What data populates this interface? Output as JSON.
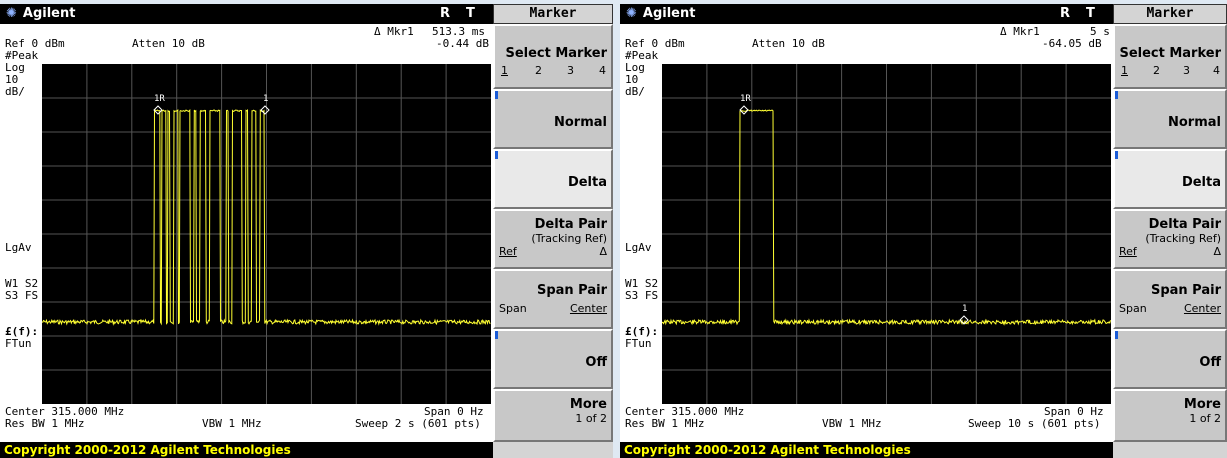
{
  "panels": [
    {
      "brand": "Agilent",
      "r_label": "R",
      "t_label": "T",
      "menu_title": "Marker",
      "mkr_label": "Δ Mkr1",
      "mkr_time": "513.3 ms",
      "mkr_amp": "-0.44 dB",
      "ref": "Ref 0 dBm",
      "atten": "Atten 10 dB",
      "peak": "#Peak",
      "log": "Log",
      "scale_val": "10",
      "scale_unit": "dB/",
      "lgav": "LgAv",
      "w1s2": "W1  S2",
      "s3fs": "S3  FS",
      "ff": "£(f):",
      "ftun": "FTun",
      "center": "Center 315.000 MHz",
      "span": "Span 0 Hz",
      "resbw": "Res BW 1 MHz",
      "vbw": "VBW 1 MHz",
      "sweep": "Sweep 2 s (601 pts)",
      "mk1r": "1R",
      "mk1": "1",
      "copyright": "Copyright 2000-2012 Agilent Technologies",
      "softkeys": {
        "select_marker": "Select Marker",
        "sel_nums": [
          "1",
          "2",
          "3",
          "4"
        ],
        "normal": "Normal",
        "delta": "Delta",
        "delta_pair": "Delta Pair",
        "tracking_ref": "(Tracking Ref)",
        "ref_label": "Ref",
        "delta_sym": "Δ",
        "span_pair": "Span Pair",
        "span_label": "Span",
        "center_label": "Center",
        "off": "Off",
        "more": "More",
        "one_of_two": "1 of 2"
      }
    },
    {
      "brand": "Agilent",
      "r_label": "R",
      "t_label": "T",
      "menu_title": "Marker",
      "mkr_label": "Δ Mkr1",
      "mkr_time": "5 s",
      "mkr_amp": "-64.05 dB",
      "ref": "Ref 0 dBm",
      "atten": "Atten 10 dB",
      "peak": "#Peak",
      "log": "Log",
      "scale_val": "10",
      "scale_unit": "dB/",
      "lgav": "LgAv",
      "w1s2": "W1  S2",
      "s3fs": "S3  FS",
      "ff": "£(f):",
      "ftun": "FTun",
      "center": "Center 315.000 MHz",
      "span": "Span 0 Hz",
      "resbw": "Res BW 1 MHz",
      "vbw": "VBW 1 MHz",
      "sweep": "Sweep 10 s (601 pts)",
      "mk1r": "1R",
      "mk1": "1",
      "copyright": "Copyright 2000-2012 Agilent Technologies",
      "softkeys": {
        "select_marker": "Select Marker",
        "sel_nums": [
          "1",
          "2",
          "3",
          "4"
        ],
        "normal": "Normal",
        "delta": "Delta",
        "delta_pair": "Delta Pair",
        "tracking_ref": "(Tracking Ref)",
        "ref_label": "Ref",
        "delta_sym": "Δ",
        "span_pair": "Span Pair",
        "span_label": "Span",
        "center_label": "Center",
        "off": "Off",
        "more": "More",
        "one_of_two": "1 of 2"
      }
    }
  ],
  "colors": {
    "trace": "#ffff33",
    "grid_bg": "#000000",
    "active_key": "#e9e9e9",
    "copyright_text": "#ffff00"
  }
}
